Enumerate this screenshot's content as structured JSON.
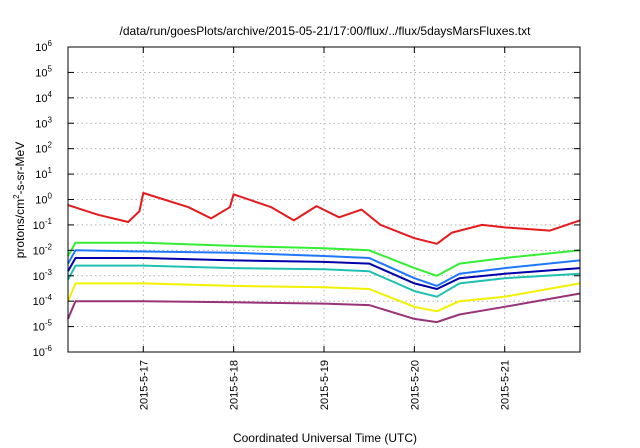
{
  "chart_data": {
    "type": "line",
    "title": "/data/run/goesPlots/archive/2015-05-21/17:00/flux/../flux/5daysMarsFluxes.txt",
    "xlabel": "Coordinated Universal Time (UTC)",
    "ylabel_parts": [
      "protons/cm",
      "2",
      "-s-sr-MeV"
    ],
    "yscale": "log",
    "ylim": [
      1e-06,
      1000000.0
    ],
    "y_ticks": [
      {
        "base": "10",
        "exp": "6",
        "value": 1000000.0
      },
      {
        "base": "10",
        "exp": "5",
        "value": 100000.0
      },
      {
        "base": "10",
        "exp": "4",
        "value": 10000.0
      },
      {
        "base": "10",
        "exp": "3",
        "value": 1000.0
      },
      {
        "base": "10",
        "exp": "2",
        "value": 100.0
      },
      {
        "base": "10",
        "exp": "1",
        "value": 10.0
      },
      {
        "base": "10",
        "exp": "0",
        "value": 1.0
      },
      {
        "base": "10",
        "exp": "-1",
        "value": 0.1
      },
      {
        "base": "10",
        "exp": "-2",
        "value": 0.01
      },
      {
        "base": "10",
        "exp": "-3",
        "value": 0.001
      },
      {
        "base": "10",
        "exp": "-4",
        "value": 0.0001
      },
      {
        "base": "10",
        "exp": "-5",
        "value": 1e-05
      },
      {
        "base": "10",
        "exp": "-6",
        "value": 1e-06
      }
    ],
    "xlim": [
      "2015-05-16 04:00",
      "2015-05-21 20:00"
    ],
    "x_ticks": [
      {
        "label": "2015-5-17",
        "value": "2015-05-17 00:00"
      },
      {
        "label": "2015-5-18",
        "value": "2015-05-18 00:00"
      },
      {
        "label": "2015-5-19",
        "value": "2015-05-19 00:00"
      },
      {
        "label": "2015-5-20",
        "value": "2015-05-20 00:00"
      },
      {
        "label": "2015-5-21",
        "value": "2015-05-21 00:00"
      }
    ],
    "grid": true,
    "series": [
      {
        "color": "#e41a1c",
        "points": [
          [
            "2015-05-16 04:00",
            0.6
          ],
          [
            "2015-05-16 12:00",
            0.25
          ],
          [
            "2015-05-16 20:00",
            0.13
          ],
          [
            "2015-05-16 23:00",
            0.35
          ],
          [
            "2015-05-17 00:00",
            1.8
          ],
          [
            "2015-05-17 12:00",
            0.5
          ],
          [
            "2015-05-17 18:00",
            0.18
          ],
          [
            "2015-05-17 23:00",
            0.5
          ],
          [
            "2015-05-18 00:00",
            1.6
          ],
          [
            "2015-05-18 10:00",
            0.5
          ],
          [
            "2015-05-18 16:00",
            0.15
          ],
          [
            "2015-05-18 22:00",
            0.55
          ],
          [
            "2015-05-19 04:00",
            0.2
          ],
          [
            "2015-05-19 10:00",
            0.4
          ],
          [
            "2015-05-19 15:00",
            0.1
          ],
          [
            "2015-05-20 00:00",
            0.03
          ],
          [
            "2015-05-20 06:00",
            0.018
          ],
          [
            "2015-05-20 10:00",
            0.05
          ],
          [
            "2015-05-20 18:00",
            0.1
          ],
          [
            "2015-05-21 00:00",
            0.08
          ],
          [
            "2015-05-21 12:00",
            0.06
          ],
          [
            "2015-05-21 18:00",
            0.12
          ],
          [
            "2015-05-21 20:00",
            0.15
          ]
        ]
      },
      {
        "color": "#33ee33",
        "points": [
          [
            "2015-05-16 04:00",
            0.006
          ],
          [
            "2015-05-16 06:00",
            0.02
          ],
          [
            "2015-05-17 00:00",
            0.02
          ],
          [
            "2015-05-18 00:00",
            0.015
          ],
          [
            "2015-05-19 00:00",
            0.012
          ],
          [
            "2015-05-19 12:00",
            0.01
          ],
          [
            "2015-05-20 00:00",
            0.002
          ],
          [
            "2015-05-20 06:00",
            0.001
          ],
          [
            "2015-05-20 12:00",
            0.003
          ],
          [
            "2015-05-21 00:00",
            0.005
          ],
          [
            "2015-05-21 20:00",
            0.01
          ]
        ]
      },
      {
        "color": "#1f77ff",
        "points": [
          [
            "2015-05-16 04:00",
            0.003
          ],
          [
            "2015-05-16 06:00",
            0.01
          ],
          [
            "2015-05-17 00:00",
            0.009
          ],
          [
            "2015-05-18 00:00",
            0.008
          ],
          [
            "2015-05-19 00:00",
            0.006
          ],
          [
            "2015-05-19 12:00",
            0.005
          ],
          [
            "2015-05-20 00:00",
            0.0008
          ],
          [
            "2015-05-20 06:00",
            0.0004
          ],
          [
            "2015-05-20 12:00",
            0.0012
          ],
          [
            "2015-05-21 00:00",
            0.002
          ],
          [
            "2015-05-21 20:00",
            0.004
          ]
        ]
      },
      {
        "color": "#0000aa",
        "points": [
          [
            "2015-05-16 04:00",
            0.0015
          ],
          [
            "2015-05-16 06:00",
            0.005
          ],
          [
            "2015-05-17 00:00",
            0.005
          ],
          [
            "2015-05-18 00:00",
            0.004
          ],
          [
            "2015-05-19 00:00",
            0.0035
          ],
          [
            "2015-05-19 12:00",
            0.003
          ],
          [
            "2015-05-20 00:00",
            0.0005
          ],
          [
            "2015-05-20 06:00",
            0.0003
          ],
          [
            "2015-05-20 12:00",
            0.0008
          ],
          [
            "2015-05-21 00:00",
            0.0012
          ],
          [
            "2015-05-21 20:00",
            0.002
          ]
        ]
      },
      {
        "color": "#20c0b0",
        "points": [
          [
            "2015-05-16 04:00",
            0.0007
          ],
          [
            "2015-05-16 06:00",
            0.0025
          ],
          [
            "2015-05-17 00:00",
            0.0025
          ],
          [
            "2015-05-18 00:00",
            0.002
          ],
          [
            "2015-05-19 00:00",
            0.0018
          ],
          [
            "2015-05-19 12:00",
            0.0015
          ],
          [
            "2015-05-20 00:00",
            0.00025
          ],
          [
            "2015-05-20 06:00",
            0.00015
          ],
          [
            "2015-05-20 12:00",
            0.0005
          ],
          [
            "2015-05-21 00:00",
            0.0008
          ],
          [
            "2015-05-21 20:00",
            0.0012
          ]
        ]
      },
      {
        "color": "#f2f200",
        "points": [
          [
            "2015-05-16 04:00",
            0.0001
          ],
          [
            "2015-05-16 06:00",
            0.0005
          ],
          [
            "2015-05-17 00:00",
            0.0005
          ],
          [
            "2015-05-18 00:00",
            0.0004
          ],
          [
            "2015-05-19 00:00",
            0.00035
          ],
          [
            "2015-05-19 12:00",
            0.0003
          ],
          [
            "2015-05-20 00:00",
            6e-05
          ],
          [
            "2015-05-20 06:00",
            4e-05
          ],
          [
            "2015-05-20 12:00",
            0.0001
          ],
          [
            "2015-05-21 00:00",
            0.00015
          ],
          [
            "2015-05-21 20:00",
            0.0005
          ]
        ]
      },
      {
        "color": "#993377",
        "points": [
          [
            "2015-05-16 04:00",
            2e-05
          ],
          [
            "2015-05-16 06:00",
            0.0001
          ],
          [
            "2015-05-17 00:00",
            0.0001
          ],
          [
            "2015-05-18 00:00",
            9e-05
          ],
          [
            "2015-05-19 00:00",
            8e-05
          ],
          [
            "2015-05-19 12:00",
            7e-05
          ],
          [
            "2015-05-20 00:00",
            2e-05
          ],
          [
            "2015-05-20 06:00",
            1.5e-05
          ],
          [
            "2015-05-20 12:00",
            3e-05
          ],
          [
            "2015-05-21 00:00",
            6e-05
          ],
          [
            "2015-05-21 20:00",
            0.0002
          ]
        ]
      }
    ]
  }
}
